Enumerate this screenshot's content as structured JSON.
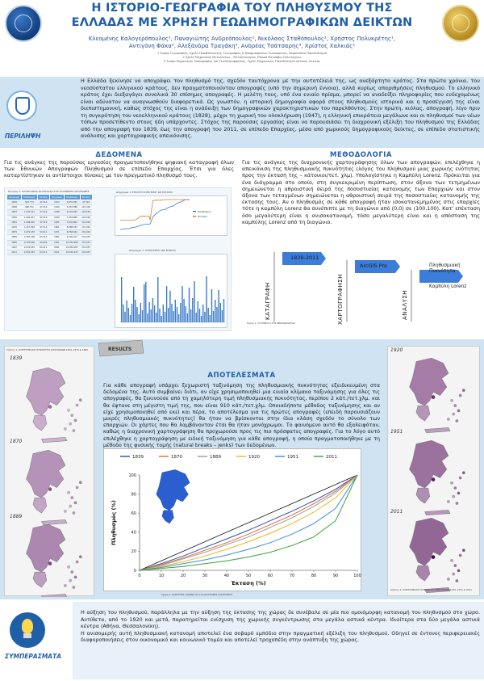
{
  "header": {
    "title_line1": "Η ΙΣΤΟΡΙΟ-ΓΕΩΓΡΑΦΙΑ ΤΟΥ ΠΛΗΘΥΣΜΟΥ ΤΗΣ",
    "title_line2": "ΕΛΛΑΔΑΣ ΜΕ ΧΡΗΣΗ ΓΕΩΔΗΜΟΓΡΑΦΙΚΩΝ ΔΕΙΚΤΩΝ",
    "authors_line1": "Κλεομένης Καλογερόπουλος¹, Παναγιώτης Ανδρεόπουλος¹, Νικόλαος Σταθόπουλος¹, Χρήστος Πολυκρέτης¹,",
    "authors_line2": "Αντιγόνη Φάκα², Αλεξάνδρα Τραγάκη³, Ανδρέας Τσάτσαρης³, Χρίστος Χαλκιάς¹",
    "affil_line1": "1  Τμήμα Γεωγραφίας, Σχολή Περιβάλλοντος, Γεωγραφίας & Εφαρμοσμένων Οικονομικών, Χαροκόπειο Πανεπιστήμιο",
    "affil_line2": "2  Σχολή Μηχανικών Μεταλλείων – Μεταλλουργών, Εθνικό Μετσόβιο Πολυτεχνείο",
    "affil_line3": "3  Τμήμα Μηχανικών Τοπογραφίας και Γεωπληροφορικής, Σχολή Μηχανικών, Πανεπιστήμιο Δυτικής Αττικής"
  },
  "abstract": {
    "label": "ΠΕΡΙΛΗΨΗ",
    "text": "Η Ελλάδα ξεκίνησε να απογράφει τον πληθυσμό της, σχεδόν ταυτόχρονα με την αυτοτέλειά της, ως ανεξάρτητο κράτος. Στα πρώτα χρόνια, του νεοσύστατου ελληνικού κράτους, δεν πραγματοποιούνταν απογραφές (υπό την σημερινή έννοια), αλλά κυρίως απαριθμήσεις πληθυσμού. Το ελληνικό κράτος έχει διεξαγάγει συνολικά 30 επίσημες απογραφές. Η μελέτη τους, υπό ένα ενιαίο πρίσμα, μπορεί να αναδείξει πληροφορίες που ενδεχομένως είναι αδύνατον να αναγνωσθούν διαφορετικά. Ως γνωστόν, η ιστορική δημογραφία αφορά στους πληθυσμούς ιστορικά και η προσέγγισή της είναι διεπιστημονική, καθώς στόχος της είναι η ανάδειξη των δημογραφικών χαρακτηριστικών του παρελθόντος. Στην πρώτη, κιόλας, απογραφή, λίγο πριν τη συγκρότηση του νεοελληνικού κράτους (1828), μέχρι τη χωρική του ολοκλήρωση (1947), η ελληνική επικράτεια μεγάλωνε και οι πληθυσμοί των νέων τόπων προσετίθεντο στους ήδη υπάρχοντες. Στόχος της παρούσας εργασίας είναι να παρουσιάσει τη διαχρονική εξέλιξη του πληθυσμού της Ελλάδας από την απογραφή του 1839, έως την απογραφή του 2011, σε επίπεδο Επαρχίας, μέσα από χωρικούς δημογραφικούς δείκτες, σε επίπεδο στατιστικής ανάλυσης και χαρτογραφικής απεικόνισης."
  },
  "data_section": {
    "title": "ΔΕΔΟΜΕΝΑ",
    "text": "Για τις ανάγκες της παρούσας εργασίας πραγματοποιήθηκε ψηφιακή καταγραφή όλων των Εθνικών Απογραφών Πληθυσμού σε επίπεδο Επαρχίας. Έτσι για όλες καταρτίστηκαν οι αντίστοιχοι πίνακες με τον πραγματικό πληθυσμό τους.",
    "table_title": "Πίνακας 1: ΠΛΗΘΥΣΜΟΣ ΚΑΙ ΕΚΤΑΣΗ ΣΤΙΣ ΕΛΛΗΝΙΚΕΣ ΑΠΟΓΡΑΦΕΣ",
    "headers": [
      "Απογραφή",
      "Πληθυσμός",
      "Έκταση",
      "Απογραφή",
      "Πληθυσμός",
      "Έκταση"
    ],
    "rows": [
      [
        "1839",
        "823.773",
        "47.516",
        "1913",
        "2.631.952",
        "47.516"
      ],
      [
        "1848",
        "986.731",
        "47.516",
        "1920",
        "5.016.889",
        "127.300"
      ],
      [
        "1853",
        "1.035.527",
        "47.516",
        "1928",
        "6.204.684",
        "129.281"
      ],
      [
        "1856",
        "1.062.627",
        "47.516",
        "1940",
        "7.344.860",
        "129.281"
      ],
      [
        "1861",
        "1.096.810",
        "47.516",
        "1951",
        "7.632.801",
        "131.944"
      ],
      [
        "1870",
        "1.457.894",
        "47.516",
        "1961",
        "8.388.553",
        "131.944"
      ],
      [
        "1879",
        "1.679.470",
        "50.211",
        "1971",
        "8.768.641",
        "131.944"
      ],
      [
        "1889",
        "2.187.208",
        "63.211",
        "1981",
        "9.740.417",
        "131.957"
      ],
      [
        "1896",
        "2.433.806",
        "63.606",
        "1991",
        "10.259.900",
        "131.957"
      ],
      [
        "1907",
        "2.631.952",
        "63.211",
        "2001",
        "10.934.097",
        "131.957"
      ],
      [
        "1911",
        "2.631.952",
        "63.211",
        "2011",
        "10.815.197",
        "131.957"
      ]
    ],
    "chart1_title": "Διάγραμμα 1: ΕΞΕΛΙΞΗ ΠΛΗΘΥΣΜΟΥ ΚΑΙ ΕΚΤΑΣΗΣ",
    "chart1_legend_pop": "Πληθυσμός",
    "chart1_legend_area": "Έκταση",
    "chart2_title": "Διάγραμμα 2: ΠΛΗΘΥΣΜΟΣ ΑΝΑ ΕΠΑΡΧΙΑ"
  },
  "method_section": {
    "title": "ΜΕΘΟΔΟΛΟΓΙΑ",
    "text": "Για τις ανάγκες της διαχρονικής χαρτογράφησης όλων των απογραφών, επιλέχθηκε η απεικόνιση της πληθυσμιακής πυκνότητας (λόγος του πληθυσμού μιας χωρικής ενότητας προς την έκτασή της – κάτοικοι/τετ. χλμ). Υπολογίστηκε η Καμπύλη Lorenz. Πρόκειται για ένα διάγραμμα στο οποίο, στη συγκεκριμένη περίπτωση, στον άξονα των τετμημένων σημειώνεται η αθροιστική σειρά της ποσοστιαίας κατανομής των Επαρχιών και στον άξονα των τεταγμένων σημειώνεται η αθροιστική σειρά της ποσοστιαίας κατανομής της έκτασης τους. Αν ο πληθυσμός σε κάθε απογραφή ήταν ισοκατανεμημένος στις επαρχίες τότε η καμπύλη Lorenz θα συνέπιπτε με τη διαγώνιο από (0,0) σε (100,100). Κατ' επέκταση όσο μεγαλύτερη είναι η ανισοκατανομή, τόσο μεγαλύτερη είναι και η απόσταση της καμπύλης Lorenz από τη διαγώνιο.",
    "flow_period": "1839-2011",
    "flow_gis": "ArcGIS Pro",
    "flow_density": "Πληθυσμιακή Πυκνότητα",
    "flow_lorenz": "Καμπύλη Lorenz",
    "stage1": "ΚΑΤΑΓΡΑΦΗ",
    "stage2": "ΧΑΡΤΟΓΡΑΦΗΣΗ",
    "stage3": "ΑΝΑΛΥΣΗ",
    "fig_caption": "Σχήμα 1: ΤΑ ΒΗΜΑΤΑ ΤΗΣ ΜΕΘΟΔΟΛΟΓΙΑΣ"
  },
  "results_section": {
    "title": "ΑΠΟΤΕΛΕΣΜΑΤΑ",
    "banner": "RESULTS",
    "text": "Για κάθε απογραφή υπάρχει ξεχωριστή ταξινόμηση της πληθυσμιακής πυκνότητας εξειδικευμένη στα δεδομένα της. Αυτό συμβαίνει διότι, αν είχε χρησιμοποιηθεί μια ενιαία κλίμακα ταξινόμησης για όλες τις απογραφές, θα ξεκινούσε από τη χαμηλότερη τιμή πληθυσμιακής πυκνότητας, περίπου 2 κάτ./τετ.χλμ. και θα έφτανε στη μέγιστη τιμή της, που είναι 910 κάτ./τετ.χλμ. Οποιαδήποτε μέθοδος ταξινόμησης και αν είχε χρησιμοποιηθεί από εκεί και πέρα, το αποτέλεσμα για τις πρώτες απογραφές (επειδή παρουσιάζουν μικρές πληθυσμιακές πυκνότητες) θα ήταν να βρίσκονται στην ίδια κλάση σχεδόν το σύνολο των επαρχιών. Οι χάρτες που θα λαμβάνονταν έτσι θα ήταν μονόχρωμοι. Το φαινόμενο αυτό θα εξαλειφόταν, καθώς η διαχρονική χαρτογράφηση θα προχωρούσε προς τις πιο πρόσφατες απογραφές. Για το λόγο αυτό επιλέχθηκε η χαρτογράφηση με ειδική ταξινόμηση για κάθε απογραφή, η οποία πραγματοποιήθηκε με τη μέθοδο της φυσικής τομής (natural breaks – jenks) των δεδομένων.",
    "left_caption": "Χάρτης 1: ΠΛΗΘΥΣΜΙΑΚΗ ΠΥΚΝΟΤΗΤΑ ΑΠΟΓΡΑΦΩΝ 1839, 1870 & 1889",
    "right_caption": "Χάρτης 2: ΠΛΗΘΥΣΜΙΑΚΗ ΠΥΚΝΟΤΗΤΑ ΑΠΟΓΡΑΦΩΝ 1920, 1951 & 2011",
    "left_years": [
      "1839",
      "1870",
      "1889"
    ],
    "right_years": [
      "1920",
      "1951",
      "2011"
    ],
    "lorenz_caption": "Σχήμα 2: ΚΑΜΠΥΛΕΣ LORENZ ΓΙΑ ΤΙΣ ΑΠΟΓΡΑΦΕΣ ΠΛΗΘΥΣΜΟΥ"
  },
  "conclusions": {
    "label": "ΣΥΜΠΕΡΑΣΜΑΤΑ",
    "text1": "Η αύξηση του πληθυσμού, παράλληλα με την αύξηση της έκτασης της χώρας δε συνέβαλε σε μία πιο ομοιόμορφη κατανομή του πληθυσμού στο χώρο. Αντίθετα, από το 1920 και μετά, παρατηρείται ενίσχυση της χωρικής συγκέντρωσης στα μεγάλα αστικά κέντρα. Ιδιαίτερα στα δύο μεγάλα αστικά κέντρα (Αθήνα, Θεσσαλονίκη).",
    "text2": "Η ανισομερής αυτή πληθυσμιακή κατανομή αποτελεί ένα σοβαρό εμπόδιο στην πραγματική εξέλιξη του πληθυσμού. Οδηγεί σε έντονες περιφερειακές διαφοροποιήσεις στον οικονομικό και κοινωνικό τομέα και αποτελεί τροχοπέδη στην ανάπτυξη της χώρας."
  },
  "colors": {
    "brand_blue": "#1f5fa8",
    "band_blue": "#cfe3f3",
    "map_dark": "#4a0a4e"
  },
  "chart_data": {
    "type": "line",
    "title": "",
    "xlabel": "Έκταση (%)",
    "ylabel": "Πληθυσμός (%)",
    "xlim": [
      0,
      100
    ],
    "ylim": [
      0,
      100
    ],
    "x_ticks": [
      0,
      10,
      20,
      30,
      40,
      50,
      60,
      70,
      80,
      90,
      100
    ],
    "y_ticks": [
      0,
      20,
      40,
      60,
      80,
      100
    ],
    "x": [
      0,
      10,
      20,
      30,
      40,
      50,
      60,
      70,
      80,
      90,
      100
    ],
    "series": [
      {
        "name": "1839",
        "color": "#2b4fb8",
        "values": [
          0,
          7,
          15,
          24,
          33,
          42,
          52,
          62,
          73,
          85,
          100
        ]
      },
      {
        "name": "1870",
        "color": "#e26b2a",
        "values": [
          0,
          6,
          13,
          21,
          29,
          38,
          48,
          58,
          70,
          83,
          100
        ]
      },
      {
        "name": "1889",
        "color": "#9c9c9c",
        "values": [
          0,
          5,
          12,
          19,
          27,
          35,
          45,
          55,
          67,
          81,
          100
        ]
      },
      {
        "name": "1920",
        "color": "#e8b820",
        "values": [
          0,
          4,
          9,
          15,
          22,
          30,
          39,
          49,
          61,
          76,
          100
        ]
      },
      {
        "name": "1951",
        "color": "#3a8fd6",
        "values": [
          0,
          3,
          7,
          11,
          16,
          22,
          29,
          38,
          49,
          65,
          100
        ]
      },
      {
        "name": "2011",
        "color": "#3aa33a",
        "values": [
          0,
          2,
          4,
          7,
          10,
          14,
          19,
          26,
          35,
          52,
          100
        ]
      }
    ]
  }
}
